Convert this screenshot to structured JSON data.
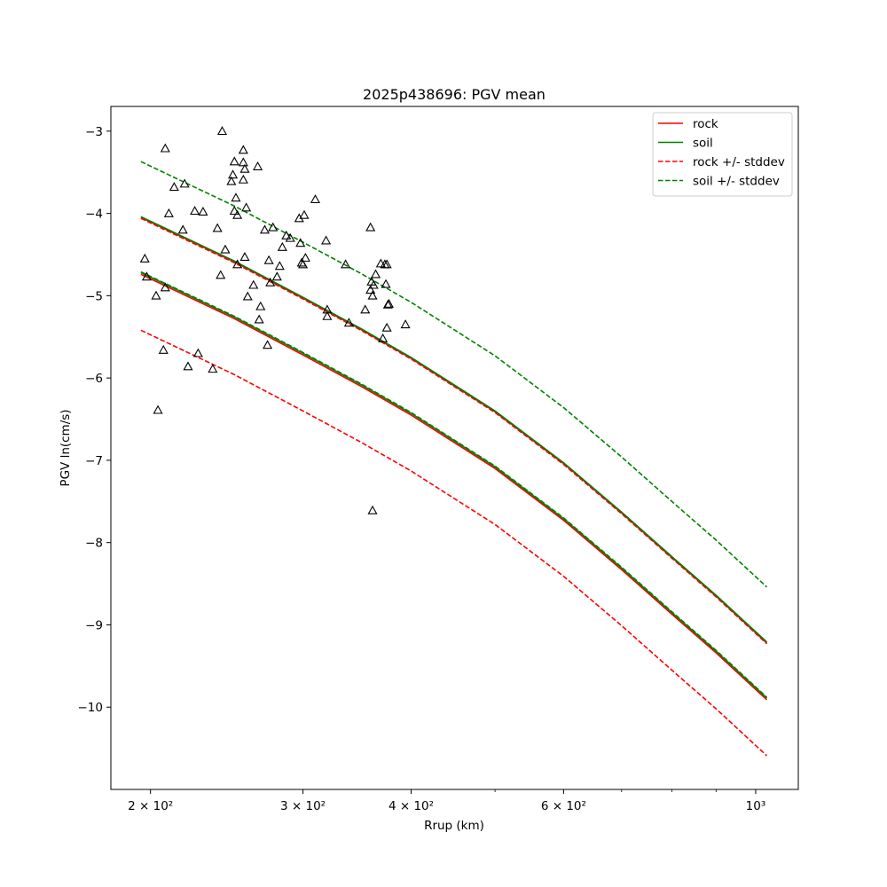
{
  "chart_data": {
    "type": "line",
    "title": "2025p438696: PGV mean",
    "xlabel": "Rrup (km)",
    "ylabel": "PGV ln(cm/s)",
    "xscale": "log",
    "xlim": [
      180,
      1120
    ],
    "ylim": [
      -11.0,
      -2.7
    ],
    "x_ticks": [
      {
        "value": 200,
        "label": "2 × 10²"
      },
      {
        "value": 300,
        "label": "3 × 10²"
      },
      {
        "value": 400,
        "label": "4 × 10²"
      },
      {
        "value": 600,
        "label": "6 × 10²"
      },
      {
        "value": 1000,
        "label": "10³"
      }
    ],
    "x_minor_ticks": [
      500,
      700,
      800,
      900
    ],
    "y_ticks": [
      {
        "value": -3,
        "label": "−3"
      },
      {
        "value": -4,
        "label": "−4"
      },
      {
        "value": -5,
        "label": "−5"
      },
      {
        "value": -6,
        "label": "−6"
      },
      {
        "value": -7,
        "label": "−7"
      },
      {
        "value": -8,
        "label": "−8"
      },
      {
        "value": -9,
        "label": "−9"
      },
      {
        "value": -10,
        "label": "−10"
      }
    ],
    "grid": false,
    "legend_position": "top-right",
    "legend": [
      {
        "name": "rock",
        "color": "#ff0000",
        "dash": "solid"
      },
      {
        "name": "soil",
        "color": "#008000",
        "dash": "solid"
      },
      {
        "name": "rock +/- stddev",
        "color": "#ff0000",
        "dash": "dashed"
      },
      {
        "name": "soil +/- stddev",
        "color": "#008000",
        "dash": "dashed"
      }
    ],
    "x": [
      195,
      250,
      300,
      350,
      400,
      500,
      600,
      700,
      800,
      900,
      1030
    ],
    "series": [
      {
        "name": "rock",
        "color": "#ff0000",
        "dash": "solid",
        "values": [
          -4.74,
          -5.28,
          -5.72,
          -6.1,
          -6.45,
          -7.1,
          -7.73,
          -8.33,
          -8.87,
          -9.34,
          -9.91
        ]
      },
      {
        "name": "rock",
        "color": "#ff0000",
        "dash": "solid",
        "values": [
          -4.05,
          -4.59,
          -5.03,
          -5.41,
          -5.76,
          -6.41,
          -7.04,
          -7.64,
          -8.18,
          -8.65,
          -9.22
        ]
      },
      {
        "name": "rock +/- stddev",
        "color": "#ff0000",
        "dash": "dashed",
        "values": [
          -4.06,
          -4.6,
          -5.04,
          -5.42,
          -5.77,
          -6.42,
          -7.05,
          -7.65,
          -8.19,
          -8.66,
          -9.23
        ]
      },
      {
        "name": "rock +/- stddev",
        "color": "#ff0000",
        "dash": "dashed",
        "values": [
          -5.42,
          -5.96,
          -6.4,
          -6.78,
          -7.13,
          -7.78,
          -8.41,
          -9.01,
          -9.55,
          -10.02,
          -10.59
        ]
      },
      {
        "name": "soil",
        "color": "#008000",
        "dash": "solid",
        "values": [
          -4.72,
          -5.26,
          -5.7,
          -6.08,
          -6.43,
          -7.08,
          -7.71,
          -8.31,
          -8.85,
          -9.32,
          -9.89
        ]
      },
      {
        "name": "soil",
        "color": "#008000",
        "dash": "solid",
        "values": [
          -4.04,
          -4.58,
          -5.02,
          -5.4,
          -5.75,
          -6.4,
          -7.03,
          -7.63,
          -8.17,
          -8.64,
          -9.21
        ]
      },
      {
        "name": "soil +/- stddev",
        "color": "#008000",
        "dash": "dashed",
        "values": [
          -3.37,
          -3.91,
          -4.35,
          -4.73,
          -5.08,
          -5.73,
          -6.36,
          -6.96,
          -7.5,
          -7.97,
          -8.54
        ]
      },
      {
        "name": "soil +/- stddev",
        "color": "#008000",
        "dash": "dashed",
        "values": [
          -4.71,
          -5.25,
          -5.69,
          -6.07,
          -6.42,
          -7.07,
          -7.7,
          -8.3,
          -8.84,
          -9.31,
          -9.88
        ]
      }
    ],
    "observations": [
      [
        197,
        -4.55
      ],
      [
        198,
        -4.77
      ],
      [
        203,
        -5.0
      ],
      [
        204,
        -6.39
      ],
      [
        207,
        -5.66
      ],
      [
        208,
        -3.21
      ],
      [
        208,
        -4.9
      ],
      [
        210,
        -4.0
      ],
      [
        213,
        -3.68
      ],
      [
        218,
        -4.2
      ],
      [
        219,
        -3.64
      ],
      [
        221,
        -5.86
      ],
      [
        225,
        -3.97
      ],
      [
        227,
        -5.7
      ],
      [
        230,
        -3.98
      ],
      [
        236,
        -5.89
      ],
      [
        239,
        -4.18
      ],
      [
        241,
        -4.75
      ],
      [
        242,
        -3.0
      ],
      [
        244,
        -4.44
      ],
      [
        248,
        -3.61
      ],
      [
        249,
        -3.53
      ],
      [
        250,
        -3.37
      ],
      [
        250,
        -3.97
      ],
      [
        251,
        -3.81
      ],
      [
        252,
        -4.02
      ],
      [
        252,
        -4.62
      ],
      [
        256,
        -3.23
      ],
      [
        256,
        -3.38
      ],
      [
        256,
        -3.59
      ],
      [
        257,
        -3.46
      ],
      [
        257,
        -4.53
      ],
      [
        258,
        -3.93
      ],
      [
        259,
        -5.01
      ],
      [
        263,
        -4.87
      ],
      [
        266,
        -3.43
      ],
      [
        267,
        -5.29
      ],
      [
        268,
        -5.13
      ],
      [
        271,
        -4.2
      ],
      [
        273,
        -5.6
      ],
      [
        274,
        -4.57
      ],
      [
        275,
        -4.84
      ],
      [
        277,
        -4.17
      ],
      [
        280,
        -4.77
      ],
      [
        282,
        -4.64
      ],
      [
        284,
        -4.41
      ],
      [
        287,
        -4.27
      ],
      [
        290,
        -4.3
      ],
      [
        297,
        -4.06
      ],
      [
        298,
        -4.36
      ],
      [
        299,
        -4.6
      ],
      [
        300,
        -4.62
      ],
      [
        301,
        -4.02
      ],
      [
        302,
        -4.54
      ],
      [
        310,
        -3.83
      ],
      [
        319,
        -4.33
      ],
      [
        320,
        -5.17
      ],
      [
        320,
        -5.25
      ],
      [
        336,
        -4.62
      ],
      [
        339,
        -5.33
      ],
      [
        354,
        -5.17
      ],
      [
        359,
        -4.17
      ],
      [
        359,
        -4.93
      ],
      [
        360,
        -4.83
      ],
      [
        361,
        -5.0
      ],
      [
        361,
        -7.61
      ],
      [
        362,
        -4.87
      ],
      [
        364,
        -4.74
      ],
      [
        369,
        -4.61
      ],
      [
        371,
        -5.52
      ],
      [
        373,
        -4.62
      ],
      [
        374,
        -4.86
      ],
      [
        375,
        -5.39
      ],
      [
        375,
        -4.62
      ],
      [
        376,
        -5.11
      ],
      [
        377,
        -5.1
      ],
      [
        394,
        -5.35
      ]
    ]
  }
}
